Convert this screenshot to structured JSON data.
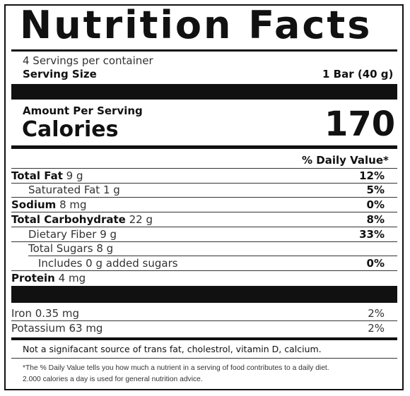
{
  "title": "Nutrition Facts",
  "servings": {
    "per_container": "4 Servings per container",
    "size_label": "Serving Size",
    "size_value": "1 Bar (40 g)"
  },
  "calories": {
    "amount_per_serving": "Amount Per Serving",
    "label": "Calories",
    "value": "170"
  },
  "dv_header": "% Daily Value*",
  "nutrients": [
    {
      "name": "Total Fat",
      "amount": "9 g",
      "dv": "12%"
    },
    {
      "name": "Saturated Fat",
      "amount": "1 g",
      "dv": "5%"
    },
    {
      "name": "Sodium",
      "amount": "8 mg",
      "dv": "0%"
    },
    {
      "name": "Total Carbohydrate",
      "amount": "22 g",
      "dv": "8%"
    },
    {
      "name": "Dietary Fiber",
      "amount": "9 g",
      "dv": "33%"
    },
    {
      "name": "Total Sugars",
      "amount": "8 g",
      "dv": ""
    },
    {
      "name": "Includes 0 g added sugars",
      "amount": "",
      "dv": "0%"
    },
    {
      "name": "Protein",
      "amount": "4 mg",
      "dv": ""
    }
  ],
  "minerals": [
    {
      "name": "Iron",
      "amount": "0.35 mg",
      "dv": "2%"
    },
    {
      "name": "Potassium",
      "amount": "63 mg",
      "dv": "2%"
    }
  ],
  "not_significant": "Not a signifacant source of trans fat, cholestrol, vitamin D, calcium.",
  "footnote": {
    "line1": "*The % Daily Value tells you how much a nutrient in a serving of food contributes to a daily diet.",
    "line2": "2.000 calories a day is used for general nutrition advice."
  }
}
